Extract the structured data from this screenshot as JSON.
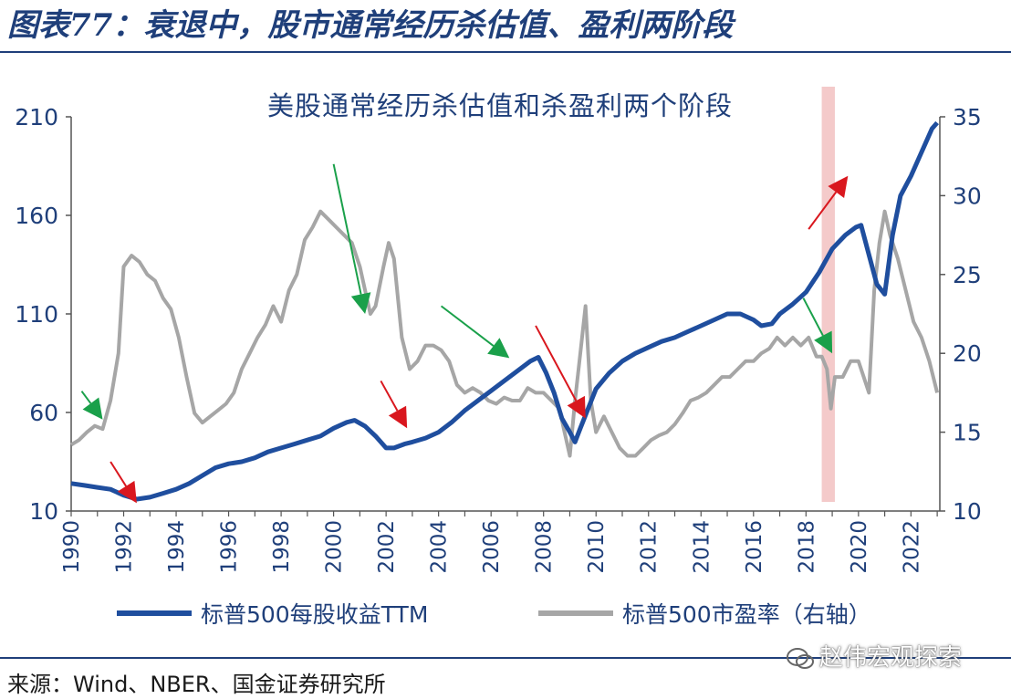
{
  "figure": {
    "title": "图表77：衰退中，股市通常经历杀估值、盈利两阶段",
    "source": "来源：Wind、NBER、国金证券研究所",
    "watermark": "赵伟宏观探索"
  },
  "chart_data": {
    "type": "line",
    "title": "美股通常经历杀估值和杀盈利两个阶段",
    "x_ticks": [
      "1990",
      "1992",
      "1994",
      "1996",
      "1998",
      "2000",
      "2002",
      "2004",
      "2006",
      "2008",
      "2010",
      "2012",
      "2014",
      "2016",
      "2018",
      "2020",
      "2022"
    ],
    "xlim": [
      1990,
      2023.1
    ],
    "y_left": {
      "ticks": [
        10,
        60,
        110,
        160,
        210
      ],
      "lim": [
        10,
        210
      ]
    },
    "y_right": {
      "ticks": [
        10,
        15,
        20,
        25,
        30,
        35
      ],
      "lim": [
        10,
        35
      ]
    },
    "grid": false,
    "legend_position": "bottom",
    "colors": {
      "eps": "#1f4e9e",
      "pe": "#a6a6a6",
      "recession": "#f3c4c4",
      "green_arrow": "#1aa04a",
      "red_arrow": "#d9171e",
      "text": "#1f3f7a"
    },
    "recession_band": [
      2018.6,
      2019.1
    ],
    "series": [
      {
        "name": "标普500每股收益TTM",
        "axis": "left",
        "x": [
          1990.0,
          1990.5,
          1991.0,
          1991.5,
          1992.0,
          1992.5,
          1993.0,
          1993.5,
          1994.0,
          1994.5,
          1995.0,
          1995.5,
          1996.0,
          1996.5,
          1997.0,
          1997.5,
          1998.0,
          1998.5,
          1999.0,
          1999.5,
          2000.0,
          2000.5,
          2000.8,
          2001.2,
          2001.6,
          2002.0,
          2002.3,
          2002.7,
          2003.0,
          2003.5,
          2004.0,
          2004.5,
          2005.0,
          2005.5,
          2006.0,
          2006.5,
          2007.0,
          2007.5,
          2007.8,
          2008.1,
          2008.4,
          2008.7,
          2009.0,
          2009.2,
          2009.4,
          2009.7,
          2010.0,
          2010.5,
          2011.0,
          2011.5,
          2012.0,
          2012.5,
          2013.0,
          2013.5,
          2014.0,
          2014.5,
          2015.0,
          2015.5,
          2016.0,
          2016.3,
          2016.7,
          2017.0,
          2017.5,
          2018.0,
          2018.5,
          2019.0,
          2019.5,
          2019.9,
          2020.1,
          2020.4,
          2020.7,
          2021.0,
          2021.3,
          2021.6,
          2022.0,
          2022.4,
          2022.8,
          2023.0
        ],
        "values": [
          24,
          23,
          22,
          21,
          18,
          16,
          17,
          19,
          21,
          24,
          28,
          32,
          34,
          35,
          37,
          40,
          42,
          44,
          46,
          48,
          52,
          55,
          56,
          53,
          48,
          42,
          42,
          44,
          45,
          47,
          50,
          55,
          61,
          66,
          71,
          76,
          81,
          86,
          88,
          80,
          70,
          57,
          50,
          45,
          52,
          62,
          72,
          80,
          86,
          90,
          93,
          96,
          98,
          101,
          104,
          107,
          110,
          110,
          107,
          104,
          105,
          110,
          115,
          121,
          131,
          143,
          150,
          154,
          155,
          140,
          125,
          120,
          150,
          170,
          180,
          192,
          204,
          207
        ]
      },
      {
        "name": "标普500市盈率（右轴）",
        "axis": "right",
        "x": [
          1990.0,
          1990.3,
          1990.6,
          1990.9,
          1991.2,
          1991.5,
          1991.8,
          1992.0,
          1992.3,
          1992.6,
          1992.9,
          1993.2,
          1993.5,
          1993.8,
          1994.1,
          1994.4,
          1994.7,
          1995.0,
          1995.3,
          1995.6,
          1995.9,
          1996.2,
          1996.5,
          1996.8,
          1997.1,
          1997.4,
          1997.7,
          1998.0,
          1998.3,
          1998.6,
          1998.9,
          1999.2,
          1999.5,
          1999.8,
          2000.1,
          2000.4,
          2000.7,
          2001.0,
          2001.2,
          2001.4,
          2001.6,
          2001.9,
          2002.1,
          2002.3,
          2002.6,
          2002.9,
          2003.2,
          2003.5,
          2003.8,
          2004.1,
          2004.4,
          2004.7,
          2005.0,
          2005.3,
          2005.6,
          2005.9,
          2006.2,
          2006.5,
          2006.8,
          2007.1,
          2007.4,
          2007.7,
          2008.0,
          2008.3,
          2008.6,
          2008.8,
          2009.0,
          2009.2,
          2009.4,
          2009.6,
          2009.8,
          2010.0,
          2010.3,
          2010.6,
          2010.9,
          2011.2,
          2011.5,
          2011.8,
          2012.1,
          2012.4,
          2012.7,
          2013.0,
          2013.3,
          2013.6,
          2013.9,
          2014.2,
          2014.5,
          2014.8,
          2015.1,
          2015.4,
          2015.7,
          2016.0,
          2016.3,
          2016.6,
          2016.9,
          2017.2,
          2017.5,
          2017.8,
          2018.1,
          2018.4,
          2018.6,
          2018.8,
          2018.95,
          2019.1,
          2019.4,
          2019.7,
          2020.0,
          2020.2,
          2020.4,
          2020.6,
          2020.8,
          2021.0,
          2021.2,
          2021.5,
          2021.8,
          2022.1,
          2022.4,
          2022.7,
          2023.0
        ],
        "values": [
          14.2,
          14.5,
          15.0,
          15.4,
          15.2,
          17.0,
          20.0,
          25.5,
          26.2,
          25.8,
          25.0,
          24.6,
          23.5,
          22.8,
          21.0,
          18.5,
          16.2,
          15.6,
          16.0,
          16.4,
          16.8,
          17.5,
          19.0,
          20.0,
          21.0,
          21.8,
          23.0,
          22.0,
          24.0,
          25.0,
          27.2,
          28.0,
          29.0,
          28.5,
          28.0,
          27.5,
          27.0,
          25.5,
          24.0,
          22.5,
          23.0,
          25.5,
          27.0,
          26.0,
          21.0,
          19.0,
          19.5,
          20.5,
          20.5,
          20.2,
          19.5,
          18.0,
          17.5,
          17.8,
          17.5,
          17.0,
          16.8,
          17.2,
          17.0,
          17.0,
          17.8,
          17.5,
          17.5,
          17.0,
          16.5,
          15.0,
          13.5,
          17.0,
          20.0,
          23.0,
          17.0,
          15.0,
          16.0,
          15.0,
          14.0,
          13.5,
          13.5,
          14.0,
          14.5,
          14.8,
          15.0,
          15.5,
          16.2,
          17.0,
          17.2,
          17.5,
          18.0,
          18.5,
          18.5,
          19.0,
          19.5,
          19.5,
          20.0,
          20.3,
          21.0,
          20.5,
          21.0,
          20.5,
          21.0,
          19.8,
          19.8,
          19.0,
          16.5,
          18.5,
          18.5,
          19.5,
          19.5,
          18.5,
          17.5,
          24.0,
          27.0,
          29.0,
          27.5,
          26.0,
          24.0,
          22.0,
          21.0,
          19.5,
          17.5
        ]
      }
    ],
    "arrows": [
      {
        "color": "green",
        "from": [
          1990.4,
          17.6
        ],
        "to": [
          1991.2,
          15.8
        ]
      },
      {
        "color": "red",
        "from": [
          1991.5,
          35
        ],
        "to": [
          1992.5,
          14
        ]
      },
      {
        "color": "green",
        "from": [
          2000.0,
          32.0
        ],
        "to": [
          2001.2,
          22.5
        ]
      },
      {
        "color": "red",
        "from": [
          2001.8,
          76
        ],
        "to": [
          2002.8,
          52
        ]
      },
      {
        "color": "green",
        "from": [
          2004.1,
          23.0
        ],
        "to": [
          2006.7,
          19.7
        ]
      },
      {
        "color": "red",
        "from": [
          2007.7,
          104
        ],
        "to": [
          2009.6,
          57
        ]
      },
      {
        "color": "green",
        "from": [
          2017.9,
          23.5
        ],
        "to": [
          2019.0,
          20.0
        ]
      },
      {
        "color": "red",
        "from": [
          2018.1,
          153
        ],
        "to": [
          2019.6,
          180
        ]
      }
    ]
  }
}
